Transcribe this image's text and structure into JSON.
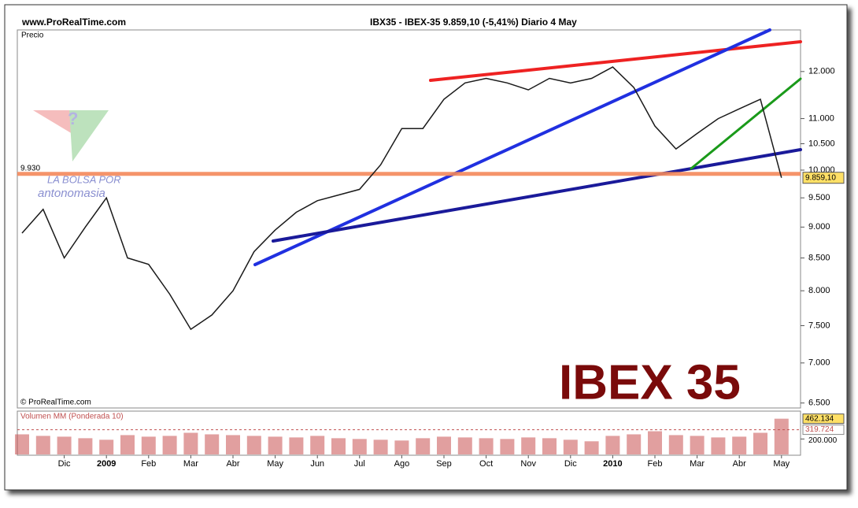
{
  "chart_data": {
    "type": "line",
    "site": "www.ProRealTime.com",
    "title": "IBX35 - IBEX-35   9.859,10 (-5,41%)   Diario  4 May",
    "y_label": "Precio",
    "copyright": "© ProRealTime.com",
    "annotation": "IBEX 35",
    "watermark": [
      "LA BOLSA POR",
      "antonomasia"
    ],
    "log_scale": true,
    "grid": false,
    "categories": [
      null,
      null,
      "Dic",
      null,
      "2009",
      null,
      "Feb",
      null,
      "Mar",
      null,
      "Abr",
      null,
      "May",
      null,
      "Jun",
      null,
      "Jul",
      null,
      "Ago",
      null,
      "Sep",
      null,
      "Oct",
      null,
      "Nov",
      null,
      "Dic",
      null,
      "2010",
      null,
      "Feb",
      null,
      "Mar",
      null,
      "Abr",
      null,
      "May"
    ],
    "series": [
      {
        "name": "IBEX-35",
        "color": "#1a1a1a",
        "values": [
          8900,
          9300,
          8500,
          9000,
          9500,
          8500,
          8400,
          7950,
          7450,
          7650,
          8000,
          8600,
          8950,
          9250,
          9450,
          9550,
          9650,
          10100,
          10800,
          10800,
          11400,
          11750,
          11850,
          11750,
          11600,
          11850,
          11750,
          11850,
          12100,
          11650,
          10850,
          10400,
          10700,
          11000,
          11200,
          11400,
          9859.1
        ]
      }
    ],
    "ylim": [
      6450,
      12960
    ],
    "yticks": [
      {
        "value": 6500,
        "label": "6.500"
      },
      {
        "value": 7000,
        "label": "7.000"
      },
      {
        "value": 7500,
        "label": "7.500"
      },
      {
        "value": 8000,
        "label": "8.000"
      },
      {
        "value": 8500,
        "label": "8.500"
      },
      {
        "value": 9000,
        "label": "9.000"
      },
      {
        "value": 9500,
        "label": "9.500"
      },
      {
        "value": 10000,
        "label": "10.000"
      },
      {
        "value": 10500,
        "label": "10.500"
      },
      {
        "value": 11000,
        "label": "11.000"
      },
      {
        "value": 12000,
        "label": "12.000"
      }
    ],
    "last_price": {
      "value": 9859.1,
      "label": "9.859,10",
      "color": "#ffe066"
    },
    "support_level": {
      "value": 9930,
      "label": "9.930",
      "color": "#f4895a"
    },
    "volume": {
      "title": "Volumen MM (Ponderada 10)",
      "color": "#c85050",
      "values": [
        260000,
        240000,
        230000,
        210000,
        190000,
        250000,
        230000,
        240000,
        280000,
        260000,
        250000,
        240000,
        230000,
        220000,
        240000,
        210000,
        200000,
        190000,
        180000,
        210000,
        230000,
        220000,
        210000,
        200000,
        220000,
        210000,
        190000,
        170000,
        240000,
        260000,
        300000,
        250000,
        240000,
        220000,
        230000,
        280000,
        462134
      ],
      "value_labels": [
        null,
        null,
        null,
        null,
        null,
        null,
        null,
        null,
        null,
        null,
        null,
        null,
        null,
        null,
        null,
        null,
        null,
        null,
        null,
        null,
        null,
        null,
        null,
        null,
        null,
        null,
        null,
        null,
        null,
        null,
        null,
        null,
        null,
        null,
        null,
        null,
        "462.134"
      ],
      "moving_average": {
        "value": 319724,
        "label": "319.724"
      },
      "ylim": [
        0,
        560000
      ],
      "yticks": [
        {
          "value": 200000,
          "label": "200.000"
        }
      ]
    }
  }
}
